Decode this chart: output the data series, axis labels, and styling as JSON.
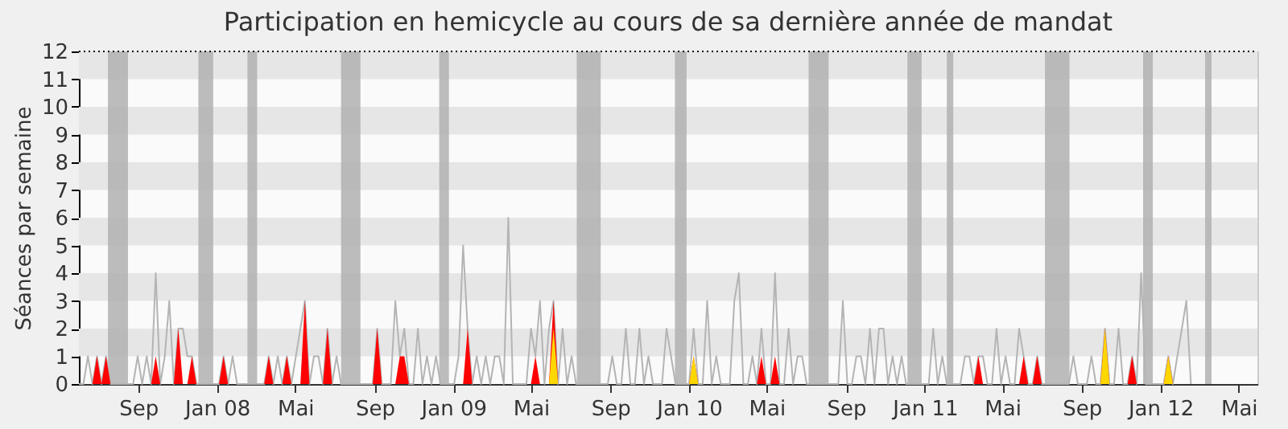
{
  "chart_data": {
    "type": "line",
    "title": "Participation en hemicycle au cours de sa dernière année de mandat",
    "ylabel": "Séances par semaine",
    "x": [
      "2007-06-15",
      "2007-06-22",
      "2007-06-29",
      "2007-07-06",
      "2007-07-13",
      "2007-07-20",
      "2007-07-27",
      "2007-08-03",
      "2007-08-10",
      "2007-08-17",
      "2007-08-24",
      "2007-08-31",
      "2007-09-07",
      "2007-09-14",
      "2007-09-21",
      "2007-09-28",
      "2007-10-05",
      "2007-10-12",
      "2007-10-19",
      "2007-10-26",
      "2007-11-02",
      "2007-11-09",
      "2007-11-16",
      "2007-11-23",
      "2007-11-30",
      "2007-12-07",
      "2007-12-14",
      "2007-12-21",
      "2007-12-28",
      "2008-01-04",
      "2008-01-11",
      "2008-01-18",
      "2008-01-25",
      "2008-02-01",
      "2008-02-08",
      "2008-02-15",
      "2008-02-22",
      "2008-02-29",
      "2008-03-07",
      "2008-03-14",
      "2008-03-21",
      "2008-03-28",
      "2008-04-04",
      "2008-04-11",
      "2008-04-18",
      "2008-04-25",
      "2008-05-02",
      "2008-05-09",
      "2008-05-16",
      "2008-05-23",
      "2008-05-30",
      "2008-06-06",
      "2008-06-13",
      "2008-06-20",
      "2008-06-27",
      "2008-07-04",
      "2008-07-11",
      "2008-07-18",
      "2008-07-25",
      "2008-08-01",
      "2008-08-08",
      "2008-08-15",
      "2008-08-22",
      "2008-08-29",
      "2008-09-05",
      "2008-09-12",
      "2008-09-19",
      "2008-09-26",
      "2008-10-03",
      "2008-10-10",
      "2008-10-17",
      "2008-10-24",
      "2008-10-31",
      "2008-11-07",
      "2008-11-14",
      "2008-11-21",
      "2008-11-28",
      "2008-12-05",
      "2008-12-12",
      "2008-12-19",
      "2008-12-26",
      "2009-01-02",
      "2009-01-09",
      "2009-01-16",
      "2009-01-23",
      "2009-01-30",
      "2009-02-06",
      "2009-02-13",
      "2009-02-20",
      "2009-02-27",
      "2009-03-06",
      "2009-03-13",
      "2009-03-20",
      "2009-03-27",
      "2009-04-03",
      "2009-04-10",
      "2009-04-17",
      "2009-04-24",
      "2009-05-01",
      "2009-05-08",
      "2009-05-15",
      "2009-05-22",
      "2009-05-29",
      "2009-06-05",
      "2009-06-12",
      "2009-06-19",
      "2009-06-26",
      "2009-07-03",
      "2009-07-10",
      "2009-07-17",
      "2009-07-24",
      "2009-07-31",
      "2009-08-07",
      "2009-08-14",
      "2009-08-21",
      "2009-08-28",
      "2009-09-04",
      "2009-09-11",
      "2009-09-18",
      "2009-09-25",
      "2009-10-02",
      "2009-10-09",
      "2009-10-16",
      "2009-10-23",
      "2009-10-30",
      "2009-11-06",
      "2009-11-13",
      "2009-11-20",
      "2009-11-27",
      "2009-12-04",
      "2009-12-11",
      "2009-12-18",
      "2009-12-25",
      "2010-01-01",
      "2010-01-08",
      "2010-01-15",
      "2010-01-22",
      "2010-01-29",
      "2010-02-05",
      "2010-02-12",
      "2010-02-19",
      "2010-02-26",
      "2010-03-05",
      "2010-03-12",
      "2010-03-19",
      "2010-03-26",
      "2010-04-02",
      "2010-04-09",
      "2010-04-16",
      "2010-04-23",
      "2010-04-30",
      "2010-05-07",
      "2010-05-14",
      "2010-05-21",
      "2010-05-28",
      "2010-06-04",
      "2010-06-11",
      "2010-06-18",
      "2010-06-25",
      "2010-07-02",
      "2010-07-09",
      "2010-07-16",
      "2010-07-23",
      "2010-07-30",
      "2010-08-06",
      "2010-08-13",
      "2010-08-20",
      "2010-08-27",
      "2010-09-03",
      "2010-09-10",
      "2010-09-17",
      "2010-09-24",
      "2010-10-01",
      "2010-10-08",
      "2010-10-15",
      "2010-10-22",
      "2010-10-29",
      "2010-11-05",
      "2010-11-12",
      "2010-11-19",
      "2010-11-26",
      "2010-12-03",
      "2010-12-10",
      "2010-12-17",
      "2010-12-24",
      "2010-12-31",
      "2011-01-07",
      "2011-01-14",
      "2011-01-21",
      "2011-01-28",
      "2011-02-04",
      "2011-02-11",
      "2011-02-18",
      "2011-02-25",
      "2011-03-04",
      "2011-03-11",
      "2011-03-18",
      "2011-03-25",
      "2011-04-01",
      "2011-04-08",
      "2011-04-15",
      "2011-04-22",
      "2011-04-29",
      "2011-05-06",
      "2011-05-13",
      "2011-05-20",
      "2011-05-27",
      "2011-06-03",
      "2011-06-10",
      "2011-06-17",
      "2011-06-24",
      "2011-07-01",
      "2011-07-08",
      "2011-07-15",
      "2011-07-22",
      "2011-07-29",
      "2011-08-05",
      "2011-08-12",
      "2011-08-19",
      "2011-08-26",
      "2011-09-02",
      "2011-09-09",
      "2011-09-16",
      "2011-09-23",
      "2011-09-30",
      "2011-10-07",
      "2011-10-14",
      "2011-10-21",
      "2011-10-28",
      "2011-11-04",
      "2011-11-11",
      "2011-11-18",
      "2011-11-25",
      "2011-12-02",
      "2011-12-09",
      "2011-12-16",
      "2011-12-23",
      "2011-12-30",
      "2012-01-06",
      "2012-01-13",
      "2012-01-20",
      "2012-01-27",
      "2012-02-03",
      "2012-02-10",
      "2012-02-17",
      "2012-02-24",
      "2012-03-02"
    ],
    "series": [
      {
        "color": "#b4b4b4",
        "values": [
          0,
          0,
          1,
          0,
          1,
          0,
          1,
          0,
          0,
          0,
          0,
          0,
          0,
          1,
          0,
          1,
          0,
          4,
          0,
          1,
          3,
          0,
          2,
          2,
          1,
          1,
          0,
          0,
          0,
          0,
          0,
          0,
          1,
          0,
          1,
          0,
          0,
          0,
          0,
          0,
          0,
          0,
          1,
          0,
          1,
          0,
          1,
          0,
          1,
          2,
          3,
          0,
          1,
          1,
          0,
          2,
          0,
          1,
          0,
          0,
          0,
          0,
          0,
          0,
          0,
          0,
          2,
          0,
          0,
          0,
          3,
          1,
          2,
          0,
          0,
          2,
          0,
          1,
          0,
          1,
          0,
          0,
          0,
          0,
          1,
          5,
          2,
          0,
          1,
          0,
          1,
          0,
          1,
          1,
          0,
          6,
          0,
          0,
          0,
          0,
          2,
          1,
          3,
          0,
          2,
          3,
          0,
          2,
          0,
          1,
          0,
          0,
          0,
          0,
          0,
          0,
          0,
          0,
          1,
          0,
          0,
          2,
          0,
          0,
          2,
          0,
          1,
          0,
          0,
          0,
          2,
          1,
          0,
          0,
          0,
          0,
          2,
          0,
          0,
          3,
          0,
          1,
          0,
          0,
          0,
          3,
          4,
          0,
          0,
          1,
          0,
          2,
          0,
          0,
          4,
          0,
          0,
          2,
          0,
          1,
          1,
          0,
          0,
          0,
          0,
          0,
          0,
          0,
          0,
          3,
          0,
          0,
          1,
          1,
          0,
          2,
          0,
          2,
          2,
          0,
          1,
          0,
          1,
          0,
          0,
          0,
          0,
          0,
          0,
          2,
          0,
          1,
          0,
          0,
          0,
          0,
          1,
          1,
          0,
          1,
          1,
          0,
          0,
          2,
          0,
          1,
          0,
          0,
          2,
          1,
          0,
          0,
          1,
          0,
          0,
          0,
          0,
          0,
          0,
          0,
          1,
          0,
          0,
          0,
          1,
          0,
          0,
          2,
          0,
          0,
          2,
          0,
          0,
          1,
          0,
          4,
          0,
          0,
          0,
          0,
          0,
          1,
          0,
          1,
          2,
          3,
          0
        ]
      },
      {
        "type": "area",
        "color": "#ff0000",
        "x": [
          "2007-07-06",
          "2007-07-13",
          "2007-07-20",
          "2007-07-27",
          "2007-08-03",
          "2007-10-05",
          "2007-10-12",
          "2007-10-19",
          "2007-11-09",
          "2007-11-16",
          "2007-11-23",
          "2007-11-30",
          "2007-12-07",
          "2007-12-14",
          "2008-01-18",
          "2008-01-25",
          "2008-02-01",
          "2008-03-28",
          "2008-04-04",
          "2008-04-11",
          "2008-04-25",
          "2008-05-02",
          "2008-05-09",
          "2008-05-23",
          "2008-05-30",
          "2008-06-06",
          "2008-06-27",
          "2008-07-04",
          "2008-07-11",
          "2008-09-12",
          "2008-09-19",
          "2008-09-26",
          "2008-10-17",
          "2008-10-24",
          "2008-10-31",
          "2008-11-07",
          "2009-01-30",
          "2009-02-06",
          "2009-02-13",
          "2009-05-15",
          "2009-05-22",
          "2009-05-29",
          "2009-06-12",
          "2009-06-19",
          "2009-06-26",
          "2010-01-15",
          "2010-01-22",
          "2010-01-29",
          "2010-04-30",
          "2010-05-07",
          "2010-05-14",
          "2010-05-21",
          "2010-05-28",
          "2010-06-04",
          "2011-04-01",
          "2011-04-08",
          "2011-04-15",
          "2011-06-10",
          "2011-06-17",
          "2011-06-24",
          "2011-07-01",
          "2011-07-08",
          "2011-07-15",
          "2011-10-14",
          "2011-10-21",
          "2011-10-28",
          "2011-11-25",
          "2011-12-02",
          "2011-12-09",
          "2012-01-20",
          "2012-01-27",
          "2012-02-03"
        ],
        "values": [
          0,
          1,
          0,
          1,
          0,
          0,
          1,
          0,
          0,
          2,
          0,
          0,
          1,
          0,
          0,
          1,
          0,
          0,
          1,
          0,
          0,
          1,
          0,
          0,
          3,
          0,
          0,
          2,
          0,
          0,
          2,
          0,
          0,
          1,
          1,
          0,
          0,
          2,
          0,
          0,
          1,
          0,
          0,
          3,
          0,
          0,
          1,
          0,
          0,
          1,
          0,
          0,
          1,
          0,
          0,
          1,
          0,
          0,
          1,
          0,
          0,
          1,
          0,
          0,
          2,
          0,
          0,
          1,
          0,
          0,
          1,
          0
        ]
      },
      {
        "type": "area",
        "color": "#ffd700",
        "x": [
          "2009-06-12",
          "2009-06-19",
          "2009-06-26",
          "2010-01-15",
          "2010-01-22",
          "2010-01-29",
          "2011-10-14",
          "2011-10-21",
          "2011-10-28",
          "2012-01-20",
          "2012-01-27",
          "2012-02-03"
        ],
        "values": [
          0,
          2,
          0,
          0,
          1,
          0,
          0,
          2,
          0,
          0,
          1,
          0
        ]
      }
    ],
    "xlim": [
      "2007-06-15",
      "2012-06-13"
    ],
    "xticks": [
      {
        "value": "2007-09-15",
        "label": "Sep"
      },
      {
        "value": "2008-01-15",
        "label": "Jan 08"
      },
      {
        "value": "2008-05-15",
        "label": "Mai"
      },
      {
        "value": "2008-09-15",
        "label": "Sep"
      },
      {
        "value": "2009-01-15",
        "label": "Jan 09"
      },
      {
        "value": "2009-05-15",
        "label": "Mai"
      },
      {
        "value": "2009-09-15",
        "label": "Sep"
      },
      {
        "value": "2010-01-15",
        "label": "Jan 10"
      },
      {
        "value": "2010-05-15",
        "label": "Mai"
      },
      {
        "value": "2010-09-15",
        "label": "Sep"
      },
      {
        "value": "2011-01-15",
        "label": "Jan 11"
      },
      {
        "value": "2011-05-15",
        "label": "Mai"
      },
      {
        "value": "2011-09-15",
        "label": "Sep"
      },
      {
        "value": "2012-01-15",
        "label": "Jan 12"
      },
      {
        "value": "2012-05-15",
        "label": "Mai"
      }
    ],
    "ylim": [
      0,
      12
    ],
    "yticks": [
      0,
      1,
      2,
      3,
      4,
      5,
      6,
      7,
      8,
      9,
      10,
      11,
      12
    ],
    "bands": [
      {
        "axis": "y",
        "from": 1,
        "to": 2,
        "color": "#e6e6e6"
      },
      {
        "axis": "y",
        "from": 3,
        "to": 4,
        "color": "#e6e6e6"
      },
      {
        "axis": "y",
        "from": 5,
        "to": 6,
        "color": "#e6e6e6"
      },
      {
        "axis": "y",
        "from": 7,
        "to": 8,
        "color": "#e6e6e6"
      },
      {
        "axis": "y",
        "from": 9,
        "to": 10,
        "color": "#e6e6e6"
      },
      {
        "axis": "y",
        "from": 11,
        "to": 12,
        "color": "#e6e6e6"
      },
      {
        "axis": "x",
        "from": "2007-07-30",
        "to": "2007-08-30",
        "color": "#b0b0b0"
      },
      {
        "axis": "x",
        "from": "2007-12-17",
        "to": "2008-01-09",
        "color": "#b0b0b0"
      },
      {
        "axis": "x",
        "from": "2008-03-02",
        "to": "2008-03-17",
        "color": "#b0b0b0"
      },
      {
        "axis": "x",
        "from": "2008-07-25",
        "to": "2008-08-24",
        "color": "#b0b0b0"
      },
      {
        "axis": "x",
        "from": "2008-12-24",
        "to": "2009-01-08",
        "color": "#b0b0b0"
      },
      {
        "axis": "x",
        "from": "2009-07-25",
        "to": "2009-08-31",
        "color": "#b0b0b0"
      },
      {
        "axis": "x",
        "from": "2009-12-24",
        "to": "2010-01-11",
        "color": "#b0b0b0"
      },
      {
        "axis": "x",
        "from": "2010-07-19",
        "to": "2010-08-19",
        "color": "#b0b0b0"
      },
      {
        "axis": "x",
        "from": "2010-12-19",
        "to": "2011-01-10",
        "color": "#b0b0b0"
      },
      {
        "axis": "x",
        "from": "2011-02-18",
        "to": "2011-02-28",
        "color": "#b0b0b0"
      },
      {
        "axis": "x",
        "from": "2011-07-20",
        "to": "2011-08-27",
        "color": "#b0b0b0"
      },
      {
        "axis": "x",
        "from": "2011-12-19",
        "to": "2012-01-03",
        "color": "#b0b0b0"
      },
      {
        "axis": "x",
        "from": "2012-03-24",
        "to": "2012-04-03",
        "color": "#b0b0b0"
      }
    ],
    "ref_lines": [
      {
        "axis": "y",
        "value": 12,
        "color": "#000000",
        "line_style": "dotted"
      }
    ]
  }
}
